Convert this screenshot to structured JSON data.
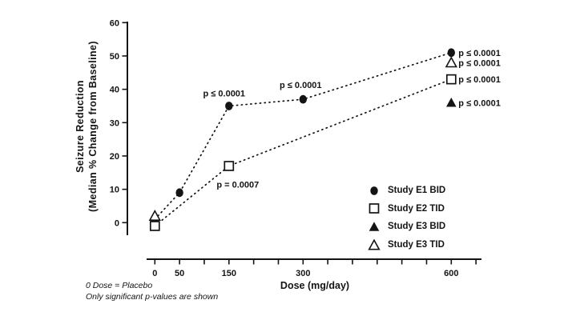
{
  "figure": {
    "background": "#ffffff",
    "ink_color": "#141414",
    "x_axis_title": "Dose (mg/day)",
    "y_axis_title_lines": [
      "Seizure Reduction",
      "(Median % Change from Baseline)"
    ],
    "footnotes": [
      "0 Dose = Placebo",
      "Only significant p-values are shown"
    ]
  },
  "chart_data": {
    "type": "scatter",
    "title": "",
    "xlabel": "Dose (mg/day)",
    "ylabel": "Seizure Reduction (Median % Change from Baseline)",
    "xlim": [
      0,
      650
    ],
    "ylim": [
      -4,
      60
    ],
    "x_ticks_labeled": [
      0,
      50,
      150,
      300,
      600
    ],
    "x_minor_tick_step": 50,
    "y_ticks": [
      0,
      10,
      20,
      30,
      40,
      50,
      60
    ],
    "grid": false,
    "line_style": "dotted",
    "legend_position": "lower-right",
    "series": [
      {
        "name": "Study E1 BID",
        "marker": "filled-circle",
        "line": "dotted",
        "points": [
          {
            "x": 0,
            "y": 1
          },
          {
            "x": 50,
            "y": 9
          },
          {
            "x": 150,
            "y": 35,
            "p": "p ≤ 0.0001",
            "p_pos": "above-left"
          },
          {
            "x": 300,
            "y": 37,
            "p": "p ≤ 0.0001",
            "p_pos": "above"
          },
          {
            "x": 600,
            "y": 51,
            "p": "p ≤ 0.0001",
            "p_pos": "right"
          }
        ]
      },
      {
        "name": "Study E2 TID",
        "marker": "open-square",
        "line": "dotted",
        "points": [
          {
            "x": 0,
            "y": -1
          },
          {
            "x": 150,
            "y": 17,
            "p": "p = 0.0007",
            "p_pos": "below-right"
          },
          {
            "x": 600,
            "y": 43,
            "p": "p ≤ 0.0001",
            "p_pos": "right"
          }
        ]
      },
      {
        "name": "Study E3 BID",
        "marker": "filled-triangle",
        "line": "none",
        "points": [
          {
            "x": 600,
            "y": 36,
            "p": "p ≤ 0.0001",
            "p_pos": "right"
          }
        ]
      },
      {
        "name": "Study E3 TID",
        "marker": "open-triangle",
        "line": "none",
        "points": [
          {
            "x": 0,
            "y": 2
          },
          {
            "x": 600,
            "y": 48,
            "p": "p ≤ 0.0001",
            "p_pos": "right"
          }
        ]
      }
    ]
  }
}
